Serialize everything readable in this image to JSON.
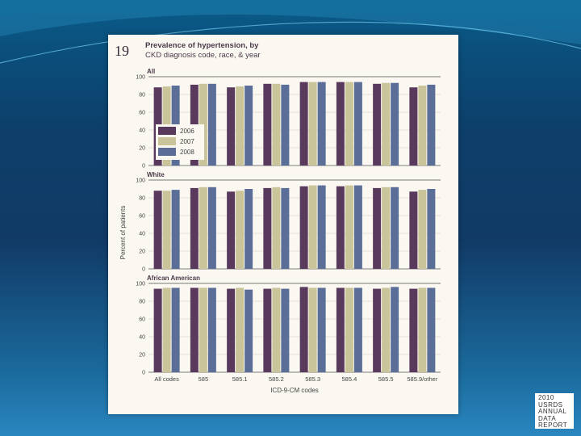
{
  "figure": {
    "number": "19",
    "title_line1": "Prevalence of hypertension, by",
    "title_line2": "CKD diagnosis code, race, & year"
  },
  "report_badge": [
    "2010",
    "USRDS",
    "ANNUAL",
    "DATA",
    "REPORT"
  ],
  "chart_data": [
    {
      "type": "bar",
      "panel_label": "All",
      "categories": [
        "All codes",
        "585",
        "585.1",
        "585.2",
        "585.3",
        "585.4",
        "585.5",
        "585.9/other"
      ],
      "series": [
        {
          "name": "2006",
          "color": "#5a3a5c",
          "values": [
            88,
            91,
            88,
            92,
            94,
            94,
            92,
            88
          ]
        },
        {
          "name": "2007",
          "color": "#c9c49a",
          "values": [
            89,
            92,
            89,
            92,
            94,
            94,
            93,
            90
          ]
        },
        {
          "name": "2008",
          "color": "#5a6e98",
          "values": [
            90,
            92,
            90,
            91,
            94,
            94,
            93,
            91
          ]
        }
      ],
      "ylim": [
        0,
        100
      ],
      "yticks": [
        0,
        20,
        40,
        60,
        80,
        100
      ],
      "legend": "inside-left"
    },
    {
      "type": "bar",
      "panel_label": "White",
      "categories": [
        "All codes",
        "585",
        "585.1",
        "585.2",
        "585.3",
        "585.4",
        "585.5",
        "585.9/other"
      ],
      "series": [
        {
          "name": "2006",
          "color": "#5a3a5c",
          "values": [
            88,
            91,
            87,
            91,
            93,
            93,
            91,
            87
          ]
        },
        {
          "name": "2007",
          "color": "#c9c49a",
          "values": [
            88,
            92,
            88,
            92,
            94,
            94,
            92,
            89
          ]
        },
        {
          "name": "2008",
          "color": "#5a6e98",
          "values": [
            89,
            92,
            90,
            91,
            94,
            94,
            92,
            90
          ]
        }
      ],
      "ylim": [
        0,
        100
      ],
      "yticks": [
        0,
        20,
        40,
        60,
        80,
        100
      ]
    },
    {
      "type": "bar",
      "panel_label": "African American",
      "categories": [
        "All codes",
        "585",
        "585.1",
        "585.2",
        "585.3",
        "585.4",
        "585.5",
        "585.9/other"
      ],
      "series": [
        {
          "name": "2006",
          "color": "#5a3a5c",
          "values": [
            94,
            95,
            94,
            94,
            96,
            95,
            94,
            94
          ]
        },
        {
          "name": "2007",
          "color": "#c9c49a",
          "values": [
            95,
            95,
            95,
            95,
            95,
            95,
            95,
            95
          ]
        },
        {
          "name": "2008",
          "color": "#5a6e98",
          "values": [
            95,
            95,
            93,
            94,
            95,
            95,
            96,
            95
          ]
        }
      ],
      "ylim": [
        0,
        100
      ],
      "yticks": [
        0,
        20,
        40,
        60,
        80,
        100
      ]
    }
  ],
  "axes": {
    "ylabel": "Percent of patients",
    "xlabel": "ICD-9-CM codes"
  }
}
